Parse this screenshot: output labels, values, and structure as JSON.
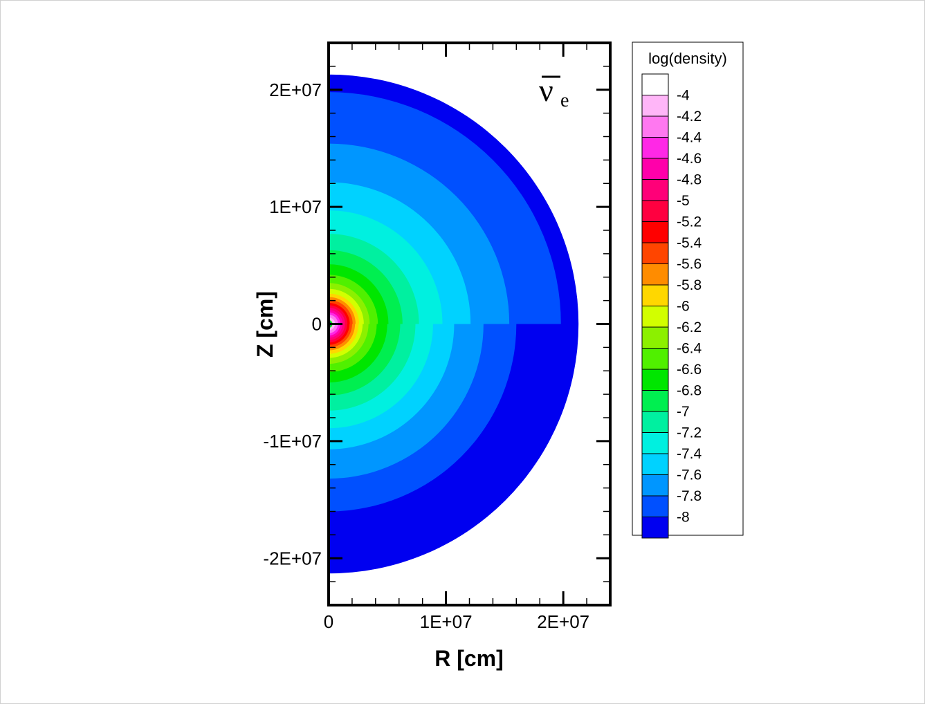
{
  "chart_data": {
    "type": "contour",
    "xlabel": "R [cm]",
    "ylabel": "Z [cm]",
    "annotation": {
      "symbol": "ν",
      "subscript": "e",
      "overbar": true
    },
    "xlim": [
      0,
      24000000
    ],
    "ylim": [
      -24000000,
      24000000
    ],
    "x_ticks": [
      0,
      10000000,
      20000000
    ],
    "x_tick_labels": [
      "0",
      "1E+07",
      "2E+07"
    ],
    "y_ticks": [
      20000000,
      10000000,
      0,
      -10000000,
      -20000000
    ],
    "y_tick_labels": [
      "2E+07",
      "1E+07",
      "0",
      "-1E+07",
      "-2E+07"
    ],
    "grid": false,
    "legend": {
      "title": "log(density)",
      "position": "right",
      "levels": [
        -4,
        -4.2,
        -4.4,
        -4.6,
        -4.8,
        -5,
        -5.2,
        -5.4,
        -5.6,
        -5.8,
        -6,
        -6.2,
        -6.4,
        -6.6,
        -6.8,
        -7,
        -7.2,
        -7.4,
        -7.6,
        -7.8,
        -8
      ],
      "labels": [
        "-4",
        "-4.2",
        "-4.4",
        "-4.6",
        "-4.8",
        "-5",
        "-5.2",
        "-5.4",
        "-5.6",
        "-5.8",
        "-6",
        "-6.2",
        "-6.4",
        "-6.6",
        "-6.8",
        "-7",
        "-7.2",
        "-7.4",
        "-7.6",
        "-7.8",
        "-8"
      ],
      "colors": [
        "#ffffff",
        "#ffb6f8",
        "#ff78f0",
        "#ff28e6",
        "#ff00aa",
        "#ff0078",
        "#ff0040",
        "#ff0000",
        "#ff4500",
        "#ff8c00",
        "#ffd700",
        "#d2ff00",
        "#8cf000",
        "#50f000",
        "#00e600",
        "#00ef50",
        "#00f0a0",
        "#00f0e0",
        "#00d2ff",
        "#0096ff",
        "#0050ff",
        "#0000f0"
      ]
    },
    "contour_bands": [
      {
        "level": -8,
        "upper_radius": 21300000,
        "lower_radius": 21300000
      },
      {
        "level": -7.8,
        "upper_radius": 19800000,
        "lower_radius": 16000000
      },
      {
        "level": -7.6,
        "upper_radius": 15400000,
        "lower_radius": 13200000
      },
      {
        "level": -7.4,
        "upper_radius": 12100000,
        "lower_radius": 10700000
      },
      {
        "level": -7.2,
        "upper_radius": 9700000,
        "lower_radius": 8900000
      },
      {
        "level": -7,
        "upper_radius": 7700000,
        "lower_radius": 7400000
      },
      {
        "level": -6.8,
        "upper_radius": 6300000,
        "lower_radius": 6100000
      },
      {
        "level": -6.6,
        "upper_radius": 5100000,
        "lower_radius": 5000000
      },
      {
        "level": -6.4,
        "upper_radius": 4200000,
        "lower_radius": 4100000
      },
      {
        "level": -6.2,
        "upper_radius": 3500000,
        "lower_radius": 3400000
      },
      {
        "level": -6,
        "upper_radius": 3000000,
        "lower_radius": 2900000
      },
      {
        "level": -5.8,
        "upper_radius": 2600000,
        "lower_radius": 2550000
      },
      {
        "level": -5.6,
        "upper_radius": 2300000,
        "lower_radius": 2250000
      },
      {
        "level": -5.4,
        "upper_radius": 2050000,
        "lower_radius": 2000000
      },
      {
        "level": -5.2,
        "upper_radius": 1800000,
        "lower_radius": 1780000
      },
      {
        "level": -5,
        "upper_radius": 1600000,
        "lower_radius": 1580000
      },
      {
        "level": -4.8,
        "upper_radius": 1400000,
        "lower_radius": 1380000
      },
      {
        "level": -4.6,
        "upper_radius": 1200000,
        "lower_radius": 1180000
      },
      {
        "level": -4.4,
        "upper_radius": 1000000,
        "lower_radius": 990000
      },
      {
        "level": -4.2,
        "upper_radius": 800000,
        "lower_radius": 790000
      },
      {
        "level": -4,
        "upper_radius": 550000,
        "lower_radius": 540000
      }
    ],
    "core_rings": [
      {
        "radius": 330000,
        "color": "#00e600"
      },
      {
        "radius": 200000,
        "color": "#0000f0"
      },
      {
        "radius": 90000,
        "color": "#000000"
      }
    ]
  }
}
